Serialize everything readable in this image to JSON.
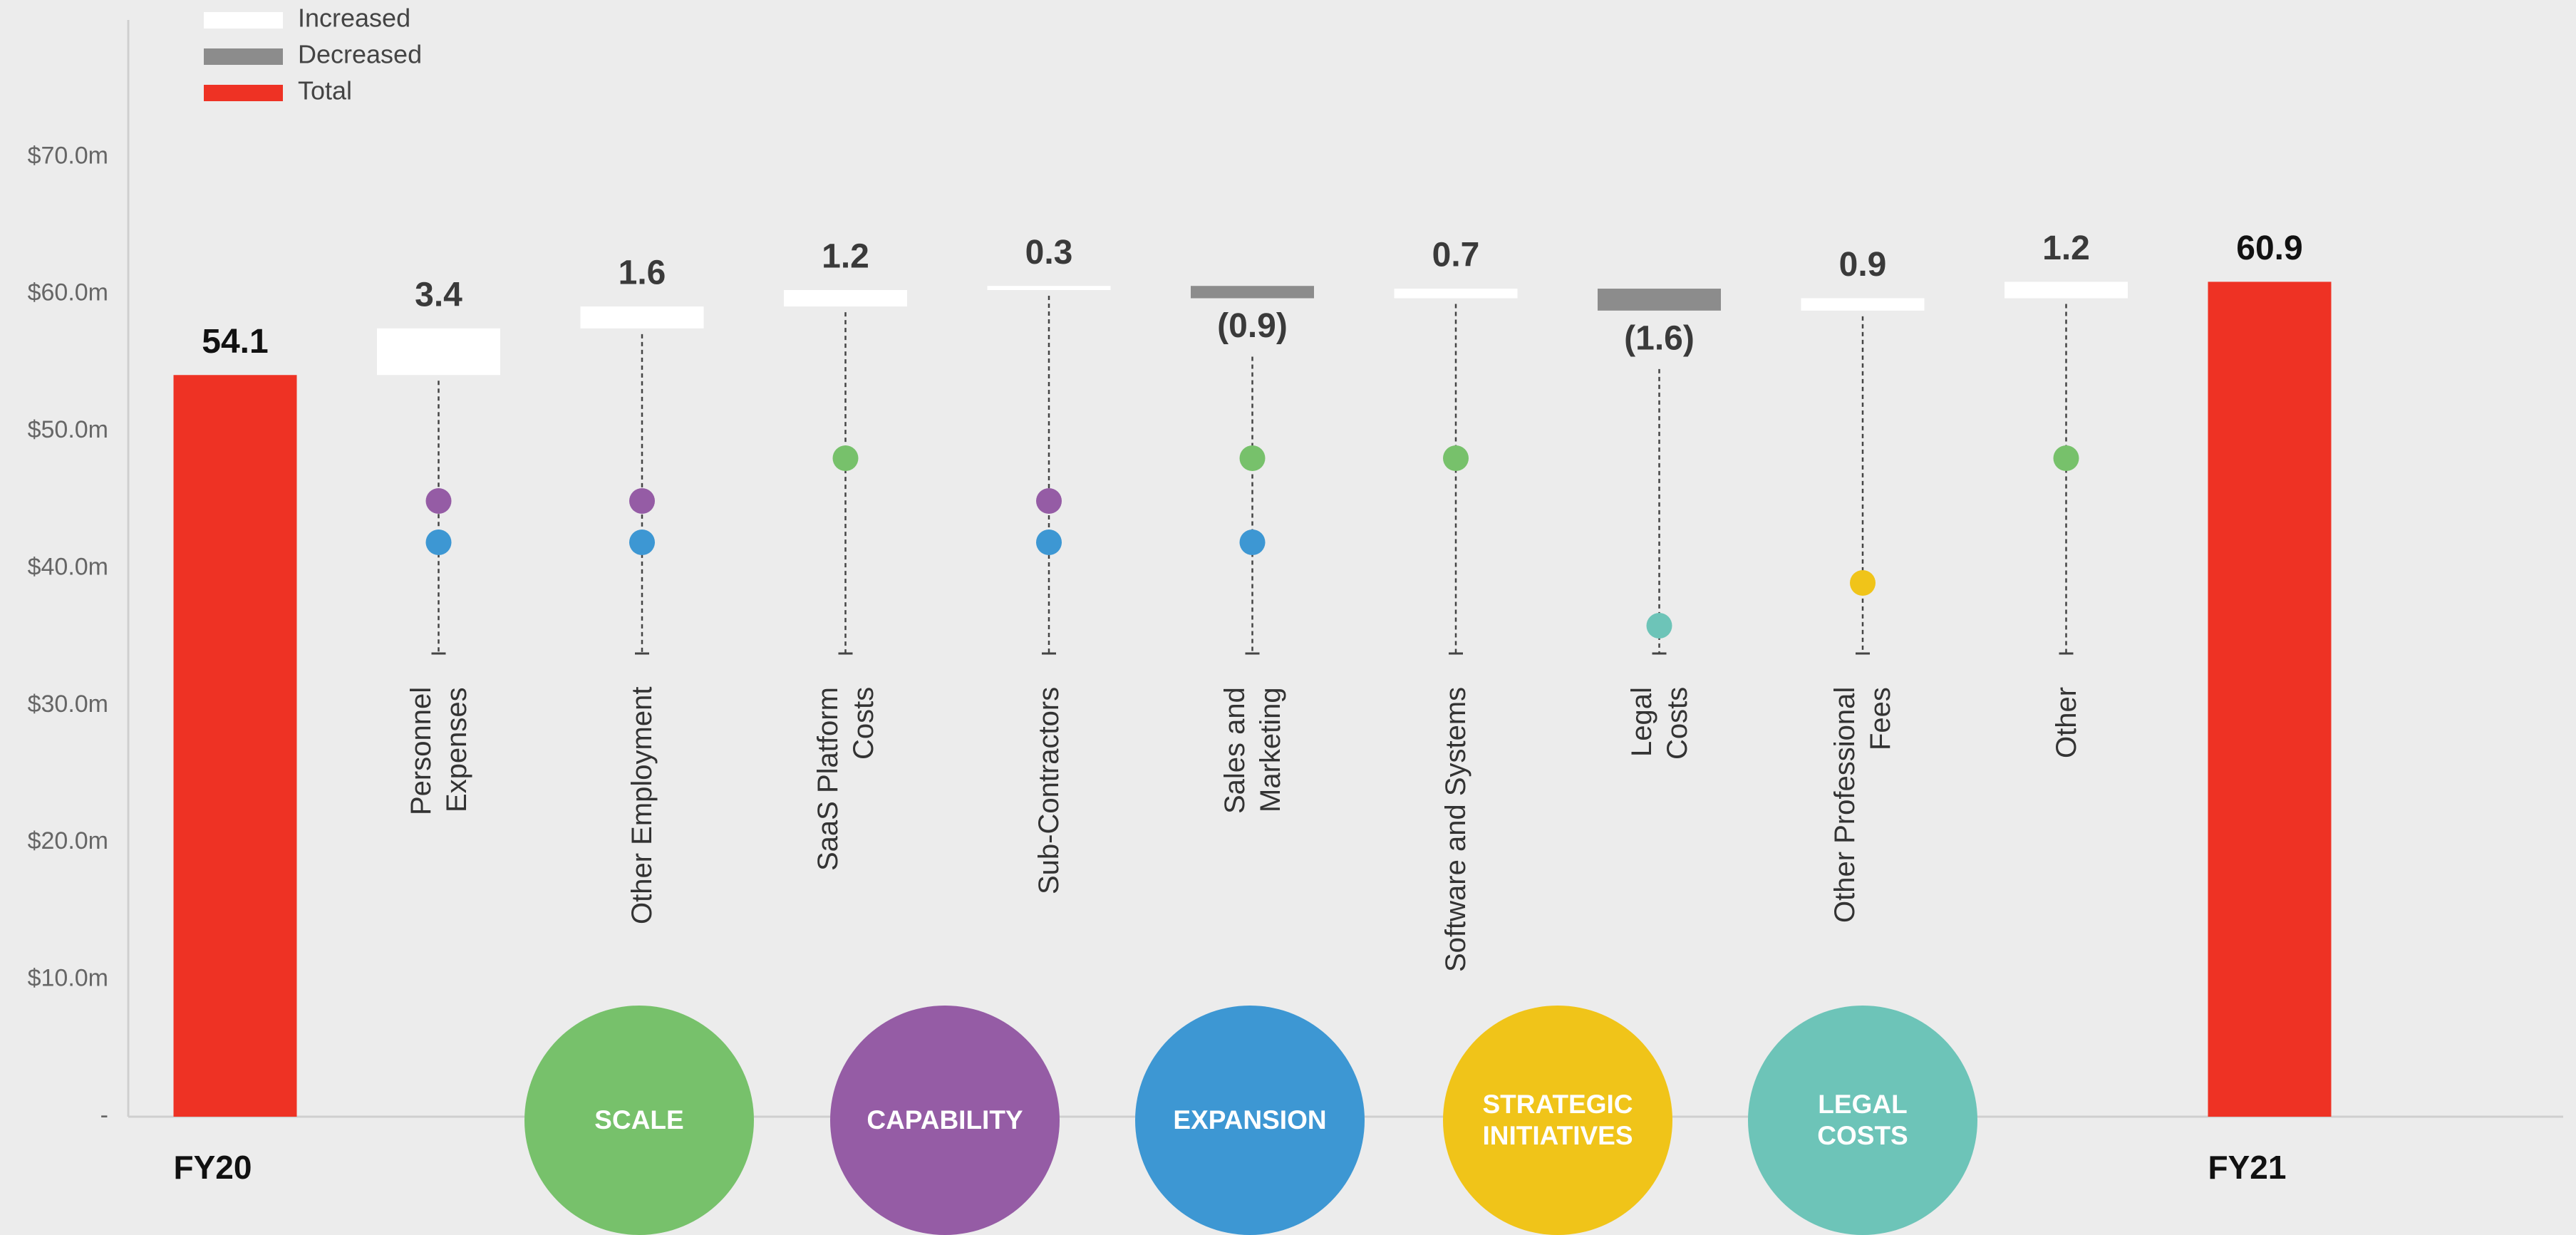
{
  "chart_data": {
    "type": "waterfall",
    "categories": [
      "FY20",
      "Personnel\nExpenses",
      "Other Employment",
      "SaaS Platform\nCosts",
      "Sub-Contractors",
      "Sales and\nMarketing",
      "Software and Systems",
      "Legal\nCosts",
      "Other Professional\nFees",
      "Other",
      "FY21"
    ],
    "measure": [
      "total",
      "relative",
      "relative",
      "relative",
      "relative",
      "relative",
      "relative",
      "relative",
      "relative",
      "relative",
      "total"
    ],
    "values": [
      54.1,
      3.4,
      1.6,
      1.2,
      0.3,
      -0.9,
      0.7,
      -1.6,
      0.9,
      1.2,
      60.9
    ],
    "value_labels": [
      "54.1",
      "3.4",
      "1.6",
      "1.2",
      "0.3",
      "(0.9)",
      "0.7",
      "(1.6)",
      "0.9",
      "1.2",
      "60.9"
    ],
    "colors": {
      "increase": "#ffffff",
      "decrease": "#8c8c8c",
      "total": "#ee3224"
    },
    "legend": {
      "position": "top-left",
      "items": [
        {
          "name": "Increased",
          "kind": "increase"
        },
        {
          "name": "Decreased",
          "kind": "decrease"
        },
        {
          "name": "Total",
          "kind": "total"
        }
      ]
    },
    "ylim": [
      0,
      80
    ],
    "yticks": [
      {
        "value": 0,
        "label": "-"
      },
      {
        "value": 10,
        "label": "$10.0m"
      },
      {
        "value": 20,
        "label": "$20.0m"
      },
      {
        "value": 30,
        "label": "$30.0m"
      },
      {
        "value": 40,
        "label": "$40.0m"
      },
      {
        "value": 50,
        "label": "$50.0m"
      },
      {
        "value": 60,
        "label": "$60.0m"
      },
      {
        "value": 70,
        "label": "$70.0m"
      }
    ],
    "grid": false,
    "themes": [
      {
        "label": [
          "SCALE"
        ],
        "color": "#77c16b"
      },
      {
        "label": [
          "CAPABILITY"
        ],
        "color": "#955ca5"
      },
      {
        "label": [
          "EXPANSION"
        ],
        "color": "#3d97d3"
      },
      {
        "label": [
          "STRATEGIC",
          "INITIATIVES"
        ],
        "color": "#f0c419"
      },
      {
        "label": [
          "LEGAL",
          "COSTS"
        ],
        "color": "#6dc4b8"
      }
    ],
    "drivers": [
      [],
      [
        1,
        2
      ],
      [
        1,
        2
      ],
      [
        0
      ],
      [
        1,
        2
      ],
      [
        0,
        2
      ],
      [
        0
      ],
      [
        4
      ],
      [
        3
      ],
      [
        0
      ],
      []
    ]
  }
}
